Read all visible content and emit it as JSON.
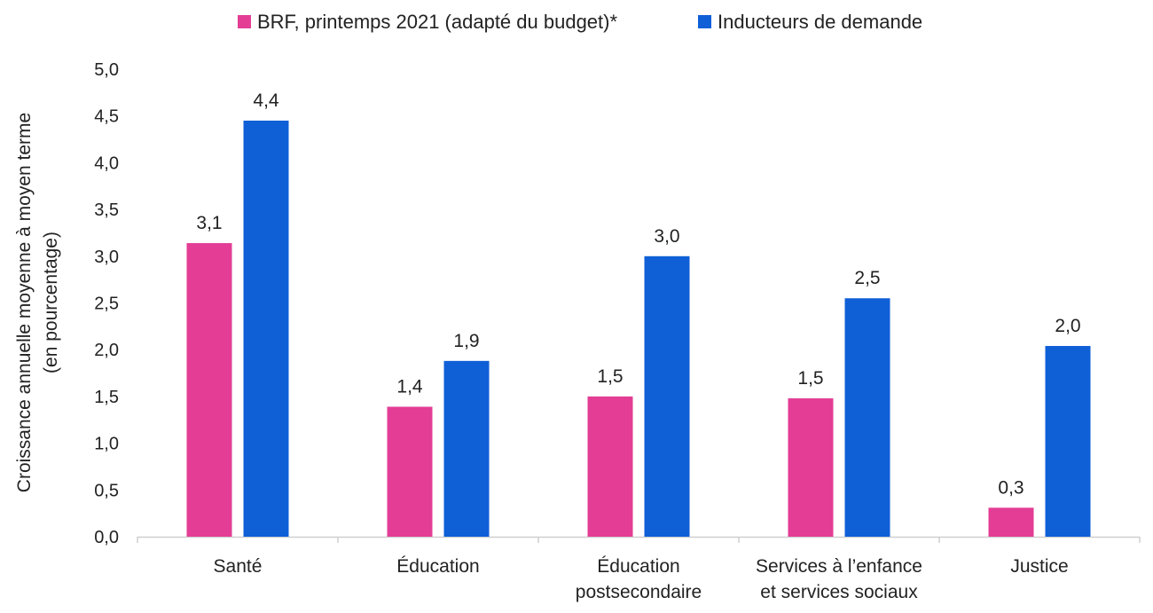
{
  "chart_data": {
    "type": "bar",
    "categories": [
      [
        "Santé"
      ],
      [
        "Éducation"
      ],
      [
        "Éducation",
        "postsecondaire"
      ],
      [
        "Services à l’enfance",
        "et services sociaux"
      ],
      [
        "Justice"
      ]
    ],
    "series": [
      {
        "name": "BRF, printemps 2021 (adapté du budget)*",
        "color": "#e33d96",
        "values": [
          3.14,
          1.39,
          1.5,
          1.48,
          0.31
        ],
        "labels": [
          "3,1",
          "1,4",
          "1,5",
          "1,5",
          "0,3"
        ]
      },
      {
        "name": "Inducteurs de demande",
        "color": "#0f5fd7",
        "values": [
          4.45,
          1.88,
          3.0,
          2.55,
          2.04
        ],
        "labels": [
          "4,4",
          "1,9",
          "3,0",
          "2,5",
          "2,0"
        ]
      }
    ],
    "ylabel": [
      "Croissance annuelle moyenne à moyen terme",
      "(en pourcentage)"
    ],
    "ylim": [
      0,
      5
    ],
    "yticks": [
      0,
      0.5,
      1,
      1.5,
      2,
      2.5,
      3,
      3.5,
      4,
      4.5,
      5
    ],
    "ytick_labels": [
      "0,0",
      "0,5",
      "1,0",
      "1,5",
      "2,0",
      "2,5",
      "3,0",
      "3,5",
      "4,0",
      "4,5",
      "5,0"
    ],
    "grid": false,
    "legend_position": "top-center",
    "axis_color": "#cfcfcf"
  }
}
